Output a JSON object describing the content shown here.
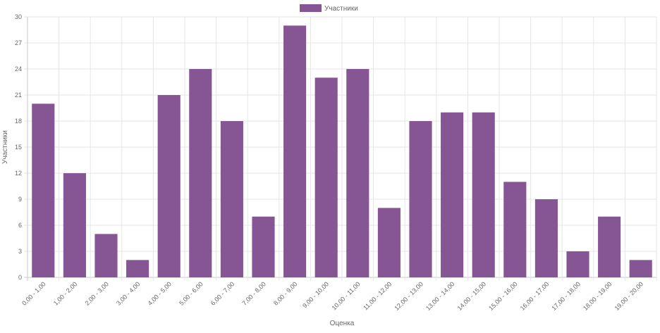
{
  "chart_data": {
    "type": "bar",
    "title": "",
    "xlabel": "Оценка",
    "ylabel": "Участники",
    "ylim": [
      0,
      30
    ],
    "yticks": [
      0,
      3,
      6,
      9,
      12,
      15,
      18,
      21,
      24,
      27,
      30
    ],
    "grid": true,
    "legend_position": "top-center",
    "categories": [
      "0,00 - 1,00",
      "1,00 - 2,00",
      "2,00 - 3,00",
      "3,00 - 4,00",
      "4,00 - 5,00",
      "5,00 - 6,00",
      "6,00 - 7,00",
      "7,00 - 8,00",
      "8,00 - 9,00",
      "9,00 - 10,00",
      "10,00 - 11,00",
      "11,00 - 12,00",
      "12,00 - 13,00",
      "13,00 - 14,00",
      "14,00 - 15,00",
      "15,00 - 16,00",
      "16,00 - 17,00",
      "17,00 - 18,00",
      "18,00 - 19,00",
      "19,00 - 20,00"
    ],
    "series": [
      {
        "name": "Участники",
        "color": "#865593",
        "values": [
          20,
          12,
          5,
          2,
          21,
          24,
          18,
          7,
          29,
          23,
          24,
          8,
          18,
          19,
          19,
          11,
          9,
          3,
          7,
          2
        ]
      }
    ]
  }
}
